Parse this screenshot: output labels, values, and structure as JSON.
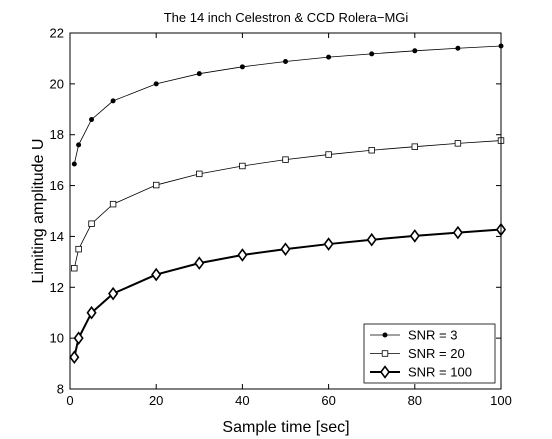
{
  "chart_data": {
    "type": "line",
    "title": "The 14 inch Celestron & CCD Rolera−MGi",
    "xlabel": "Sample time [sec]",
    "ylabel": "Limiting amplitude U",
    "xlim": [
      0,
      100
    ],
    "ylim": [
      8,
      22
    ],
    "xticks": [
      "0",
      "20",
      "40",
      "60",
      "80",
      "100"
    ],
    "yticks": [
      "8",
      "10",
      "12",
      "14",
      "16",
      "18",
      "20",
      "22"
    ],
    "grid": false,
    "legend_position": "bottom-right",
    "x": [
      1,
      2,
      5,
      10,
      20,
      30,
      40,
      50,
      60,
      70,
      80,
      90,
      100
    ],
    "series": [
      {
        "name": "SNR = 3",
        "marker": "dot",
        "values": [
          16.85,
          17.6,
          18.6,
          19.33,
          20.0,
          20.4,
          20.67,
          20.88,
          21.05,
          21.18,
          21.3,
          21.4,
          21.49
        ]
      },
      {
        "name": "SNR = 20",
        "marker": "square",
        "values": [
          12.75,
          13.5,
          14.5,
          15.27,
          16.02,
          16.46,
          16.77,
          17.02,
          17.22,
          17.39,
          17.53,
          17.66,
          17.77
        ]
      },
      {
        "name": "SNR = 100",
        "marker": "diamond",
        "values": [
          9.25,
          10.0,
          11.0,
          11.75,
          12.5,
          12.95,
          13.27,
          13.5,
          13.7,
          13.87,
          14.02,
          14.15,
          14.27
        ]
      }
    ]
  }
}
